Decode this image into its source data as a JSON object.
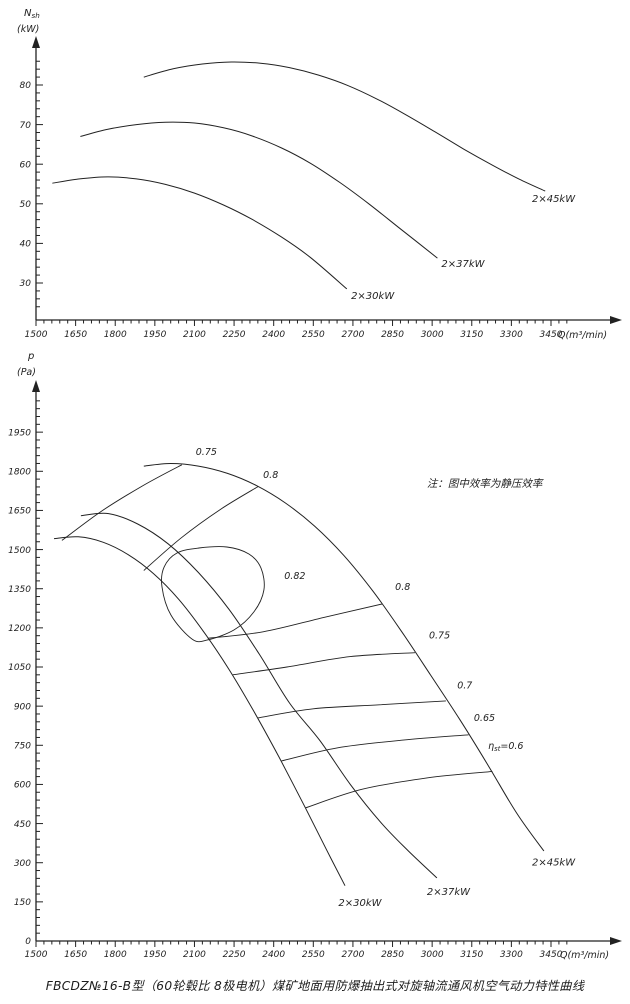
{
  "page": {
    "background": "#ffffff",
    "ink": "#222222"
  },
  "caption": "FBCDZ№16-B型（60轮毂比 8极电机）煤矿地面用防爆抽出式对旋轴流通风机空气动力特性曲线",
  "chart_data": [
    {
      "type": "line",
      "title": "",
      "ylabel": {
        "pre": "N",
        "sub": "sh",
        "unit": "(kW)"
      },
      "xlabel": "Q(m³/min)",
      "x_axis": {
        "min": 1500,
        "max": 3450,
        "major_step": 150,
        "minor_step": 30
      },
      "y_axis": {
        "tick_min": 30,
        "tick_max": 80,
        "major_step": 10,
        "minor_step": 2,
        "minor_min": 24,
        "minor_max": 86
      },
      "series": [
        {
          "name": "2×30kW",
          "label_at": [
            2693,
            26
          ],
          "points": [
            [
              1562,
              55.2
            ],
            [
              1655,
              56.2
            ],
            [
              1770,
              56.8
            ],
            [
              1880,
              56.3
            ],
            [
              1990,
              54.9
            ],
            [
              2100,
              52.7
            ],
            [
              2210,
              49.7
            ],
            [
              2320,
              46.0
            ],
            [
              2430,
              41.6
            ],
            [
              2540,
              36.4
            ],
            [
              2677,
              28.5
            ]
          ]
        },
        {
          "name": "2×37kW",
          "label_at": [
            3035,
            34
          ],
          "points": [
            [
              1668,
              67.0
            ],
            [
              1770,
              68.8
            ],
            [
              1880,
              70.0
            ],
            [
              1990,
              70.6
            ],
            [
              2100,
              70.4
            ],
            [
              2210,
              69.2
            ],
            [
              2320,
              67.1
            ],
            [
              2430,
              64.1
            ],
            [
              2540,
              60.2
            ],
            [
              2650,
              55.4
            ],
            [
              2760,
              50.0
            ],
            [
              2870,
              44.2
            ],
            [
              3020,
              36.3
            ]
          ]
        },
        {
          "name": "2×45kW",
          "label_at": [
            3378,
            50.5
          ],
          "points": [
            [
              1908,
              82.0
            ],
            [
              2020,
              84.1
            ],
            [
              2130,
              85.3
            ],
            [
              2240,
              85.8
            ],
            [
              2350,
              85.5
            ],
            [
              2460,
              84.4
            ],
            [
              2570,
              82.5
            ],
            [
              2680,
              79.9
            ],
            [
              2790,
              76.5
            ],
            [
              2900,
              72.5
            ],
            [
              3010,
              68.2
            ],
            [
              3120,
              63.8
            ],
            [
              3230,
              59.7
            ],
            [
              3330,
              56.2
            ],
            [
              3428,
              53.2
            ]
          ]
        }
      ]
    },
    {
      "type": "line",
      "title": "",
      "ylabel": {
        "pre": "p",
        "sub": "",
        "unit": "(Pa)"
      },
      "xlabel": "Q(m³/min)",
      "x_axis": {
        "min": 1500,
        "max": 3450,
        "major_step": 150,
        "minor_step": 30
      },
      "y_axis": {
        "tick_min": 0,
        "tick_max": 2100,
        "major_step": 150,
        "minor_step": 30,
        "minor_min": 0,
        "minor_max": 2100
      },
      "note": {
        "text": "注：图中效率为静压效率",
        "at": [
          2980,
          1740
        ]
      },
      "series": [
        {
          "name": "2×30kW",
          "label_at": [
            2645,
            135
          ],
          "points": [
            [
              1568,
              1542
            ],
            [
              1660,
              1549
            ],
            [
              1755,
              1528
            ],
            [
              1850,
              1480
            ],
            [
              1945,
              1408
            ],
            [
              2040,
              1310
            ],
            [
              2135,
              1185
            ],
            [
              2230,
              1042
            ],
            [
              2325,
              880
            ],
            [
              2420,
              705
            ],
            [
              2515,
              520
            ],
            [
              2600,
              350
            ],
            [
              2670,
              212
            ]
          ]
        },
        {
          "name": "2×37kW",
          "label_at": [
            2980,
            176
          ],
          "points": [
            [
              1670,
              1630
            ],
            [
              1775,
              1638
            ],
            [
              1885,
              1598
            ],
            [
              2000,
              1522
            ],
            [
              2115,
              1412
            ],
            [
              2230,
              1272
            ],
            [
              2345,
              1100
            ],
            [
              2460,
              912
            ],
            [
              2575,
              768
            ],
            [
              2690,
              600
            ],
            [
              2805,
              455
            ],
            [
              2910,
              345
            ],
            [
              3018,
              242
            ]
          ]
        },
        {
          "name": "2×45kW",
          "label_at": [
            3378,
            290
          ],
          "points": [
            [
              1908,
              1820
            ],
            [
              2010,
              1830
            ],
            [
              2115,
              1820
            ],
            [
              2225,
              1792
            ],
            [
              2335,
              1745
            ],
            [
              2445,
              1678
            ],
            [
              2555,
              1590
            ],
            [
              2665,
              1478
            ],
            [
              2775,
              1342
            ],
            [
              2885,
              1185
            ],
            [
              2995,
              1018
            ],
            [
              3105,
              848
            ],
            [
              3215,
              668
            ],
            [
              3320,
              490
            ],
            [
              3423,
              345
            ]
          ]
        }
      ],
      "efficiency_contours": [
        {
          "value": 0.75,
          "side": "left",
          "label": "0.75",
          "label_at": [
            2105,
            1862
          ],
          "points": [
            [
              1598,
              1535
            ],
            [
              1745,
              1645
            ],
            [
              1905,
              1745
            ],
            [
              2052,
              1825
            ]
          ]
        },
        {
          "value": 0.8,
          "side": "left",
          "label": "0.8",
          "label_at": [
            2360,
            1775
          ],
          "points": [
            [
              1908,
              1420
            ],
            [
              2050,
              1545
            ],
            [
              2200,
              1655
            ],
            [
              2342,
              1742
            ]
          ]
        },
        {
          "value": 0.82,
          "closed": true,
          "label": "0.82",
          "label_at": [
            2440,
            1388
          ],
          "points": [
            [
              1985,
              1433
            ],
            [
              2034,
              1487
            ],
            [
              2117,
              1506
            ],
            [
              2223,
              1510
            ],
            [
              2306,
              1483
            ],
            [
              2352,
              1429
            ],
            [
              2363,
              1345
            ],
            [
              2325,
              1261
            ],
            [
              2250,
              1192
            ],
            [
              2147,
              1153
            ],
            [
              2091,
              1157
            ],
            [
              2011,
              1249
            ],
            [
              1977,
              1357
            ]
          ]
        },
        {
          "value": 0.8,
          "side": "right",
          "label": "0.8",
          "label_at": [
            2860,
            1345
          ],
          "points": [
            [
              2150,
              1160
            ],
            [
              2360,
              1185
            ],
            [
              2590,
              1240
            ],
            [
              2812,
              1292
            ]
          ]
        },
        {
          "value": 0.75,
          "side": "right",
          "label": "0.75",
          "label_at": [
            2988,
            1160
          ],
          "points": [
            [
              2245,
              1020
            ],
            [
              2450,
              1050
            ],
            [
              2690,
              1090
            ],
            [
              2935,
              1105
            ]
          ]
        },
        {
          "value": 0.7,
          "side": "right",
          "label": "0.7",
          "label_at": [
            3095,
            968
          ],
          "points": [
            [
              2340,
              855
            ],
            [
              2550,
              890
            ],
            [
              2800,
              905
            ],
            [
              3052,
              920
            ]
          ]
        },
        {
          "value": 0.65,
          "side": "right",
          "label": "0.65",
          "label_at": [
            3158,
            843
          ],
          "points": [
            [
              2430,
              690
            ],
            [
              2640,
              740
            ],
            [
              2890,
              770
            ],
            [
              3138,
              790
            ]
          ]
        },
        {
          "value": 0.6,
          "side": "right",
          "label": {
            "pre": "η",
            "sub": "st",
            "post": "=0.6"
          },
          "label_at": [
            3212,
            735
          ],
          "points": [
            [
              2520,
              510
            ],
            [
              2730,
              580
            ],
            [
              2980,
              625
            ],
            [
              3228,
              650
            ]
          ]
        }
      ]
    }
  ]
}
